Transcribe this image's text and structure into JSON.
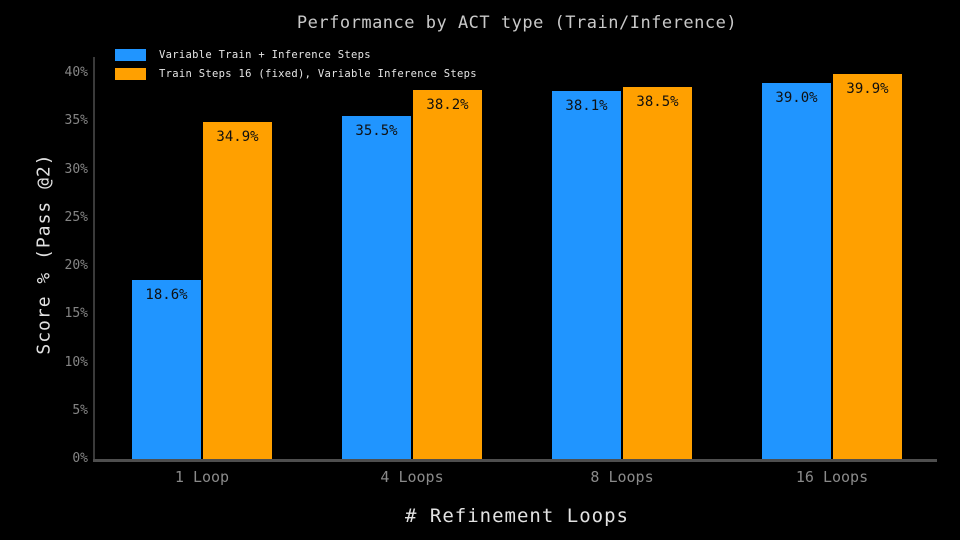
{
  "title": "Performance by ACT type (Train/Inference)",
  "colors": {
    "background": "#000000",
    "series_blue": "#2095FF",
    "series_orange": "#FFA000",
    "title_text": "#c9c9c9",
    "axis_label_text": "#e2e2e2",
    "tick_text": "#8a8a8a",
    "bar_label_text": "#101010",
    "x_axis_line": "#4e4e4e",
    "y_axis_line": "#3a3a3a"
  },
  "chart_data": {
    "type": "bar",
    "title": "Performance by ACT type (Train/Inference)",
    "xlabel": "# Refinement Loops",
    "ylabel": "Score % (Pass @2)",
    "categories": [
      "1 Loop",
      "4 Loops",
      "8 Loops",
      "16 Loops"
    ],
    "series": [
      {
        "name": "Variable Train + Inference Steps",
        "color": "#2095FF",
        "values": [
          18.6,
          35.5,
          38.1,
          39.0
        ]
      },
      {
        "name": "Train Steps 16 (fixed), Variable Inference Steps",
        "color": "#FFA000",
        "values": [
          34.9,
          38.2,
          38.5,
          39.9
        ]
      }
    ],
    "bar_labels": [
      [
        "18.6%",
        "35.5%",
        "38.1%",
        "39.0%"
      ],
      [
        "34.9%",
        "38.2%",
        "38.5%",
        "39.9%"
      ]
    ],
    "yticks": [
      "0%",
      "5%",
      "10%",
      "15%",
      "20%",
      "25%",
      "30%",
      "35%",
      "40%"
    ],
    "ytick_values": [
      0,
      5,
      10,
      15,
      20,
      25,
      30,
      35,
      40
    ],
    "ylim": [
      0,
      41.5
    ],
    "grid": false,
    "legend_position": "upper-left",
    "background": "black"
  }
}
